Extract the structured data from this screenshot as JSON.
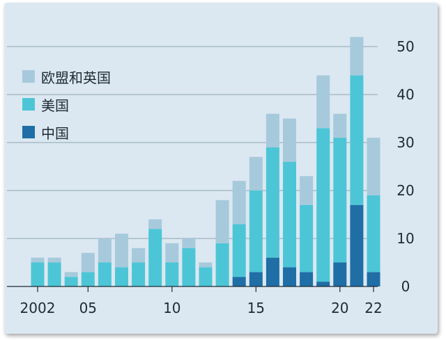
{
  "chart_data": {
    "type": "bar",
    "stacked": true,
    "title": "",
    "xlabel": "",
    "ylabel": "",
    "x": [
      2002,
      2003,
      2004,
      2005,
      2006,
      2007,
      2008,
      2009,
      2010,
      2011,
      2012,
      2013,
      2014,
      2015,
      2016,
      2017,
      2018,
      2019,
      2020,
      2021,
      2022
    ],
    "xtick_labels": [
      {
        "year": 2002,
        "label": "2002"
      },
      {
        "year": 2005,
        "label": "05"
      },
      {
        "year": 2010,
        "label": "10"
      },
      {
        "year": 2015,
        "label": "15"
      },
      {
        "year": 2020,
        "label": "20"
      },
      {
        "year": 2022,
        "label": "22"
      }
    ],
    "ylim": [
      0,
      50
    ],
    "yticks": [
      0,
      10,
      20,
      30,
      40,
      50
    ],
    "y_axis_position": "right",
    "grid": "horizontal",
    "legend_position": "top-left",
    "series": [
      {
        "name": "中国",
        "color": "#1f6ea6",
        "values": [
          0,
          0,
          0,
          0,
          0,
          0,
          0,
          0,
          0,
          0,
          0,
          0,
          2,
          3,
          6,
          4,
          3,
          1,
          5,
          17,
          3
        ]
      },
      {
        "name": "美国",
        "color": "#4cc6d6",
        "values": [
          5,
          5,
          2,
          3,
          5,
          4,
          5,
          12,
          5,
          8,
          4,
          9,
          11,
          17,
          23,
          22,
          14,
          32,
          26,
          27,
          16
        ]
      },
      {
        "name": "欧盟和英国",
        "color": "#a7c9dc",
        "values": [
          1,
          1,
          1,
          4,
          5,
          7,
          3,
          2,
          4,
          2,
          1,
          9,
          9,
          7,
          7,
          9,
          6,
          11,
          5,
          8,
          12
        ]
      }
    ]
  }
}
